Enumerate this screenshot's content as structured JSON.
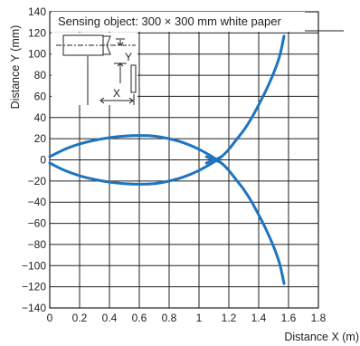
{
  "chart_data": {
    "type": "line",
    "xlabel": "Distance X (m)",
    "ylabel": "Distance Y (mm)",
    "xlim": [
      0,
      1.8
    ],
    "ylim": [
      -140,
      140
    ],
    "x_ticks": [
      "0",
      "0.2",
      "0.4",
      "0.6",
      "0.8",
      "1",
      "1.2",
      "1.4",
      "1.6",
      "1.8"
    ],
    "y_ticks": [
      "140",
      "120",
      "100",
      "80",
      "60",
      "40",
      "20",
      "0",
      "−20",
      "−40",
      "−60",
      "−80",
      "−100",
      "−120",
      "−140"
    ],
    "grid": true,
    "annotation": "Sensing object: 300 × 300 mm white paper",
    "diagram_labels": {
      "y": "Y",
      "x": "X"
    },
    "series_colors": [
      "#1f74bf",
      "#1f74bf",
      "#1f74bf",
      "#1f74bf"
    ],
    "series": [
      {
        "x": [
          0.0,
          0.1,
          0.2,
          0.3,
          0.4,
          0.5,
          0.6,
          0.7,
          0.8,
          0.9,
          1.0,
          1.1,
          1.15
        ],
        "y": [
          3,
          10,
          15,
          18.5,
          21,
          22.5,
          23,
          22.5,
          20,
          16,
          10,
          2,
          -3
        ]
      },
      {
        "x": [
          0.0,
          0.1,
          0.2,
          0.3,
          0.4,
          0.5,
          0.6,
          0.7,
          0.8,
          0.9,
          1.0,
          1.1,
          1.15
        ],
        "y": [
          -3,
          -10,
          -15,
          -18.5,
          -21,
          -22.5,
          -23,
          -22.5,
          -20,
          -16,
          -10,
          -2,
          3
        ]
      },
      {
        "x": [
          1.05,
          1.1,
          1.15,
          1.2,
          1.25,
          1.3,
          1.35,
          1.4,
          1.45,
          1.5,
          1.54,
          1.57
        ],
        "y": [
          -3,
          0,
          3,
          10,
          19,
          28,
          39,
          52,
          66,
          82,
          98,
          117
        ]
      },
      {
        "x": [
          1.05,
          1.1,
          1.15,
          1.2,
          1.25,
          1.3,
          1.35,
          1.4,
          1.45,
          1.5,
          1.54,
          1.57
        ],
        "y": [
          3,
          0,
          -3,
          -10,
          -19,
          -28,
          -39,
          -52,
          -66,
          -82,
          -98,
          -117
        ]
      }
    ]
  }
}
